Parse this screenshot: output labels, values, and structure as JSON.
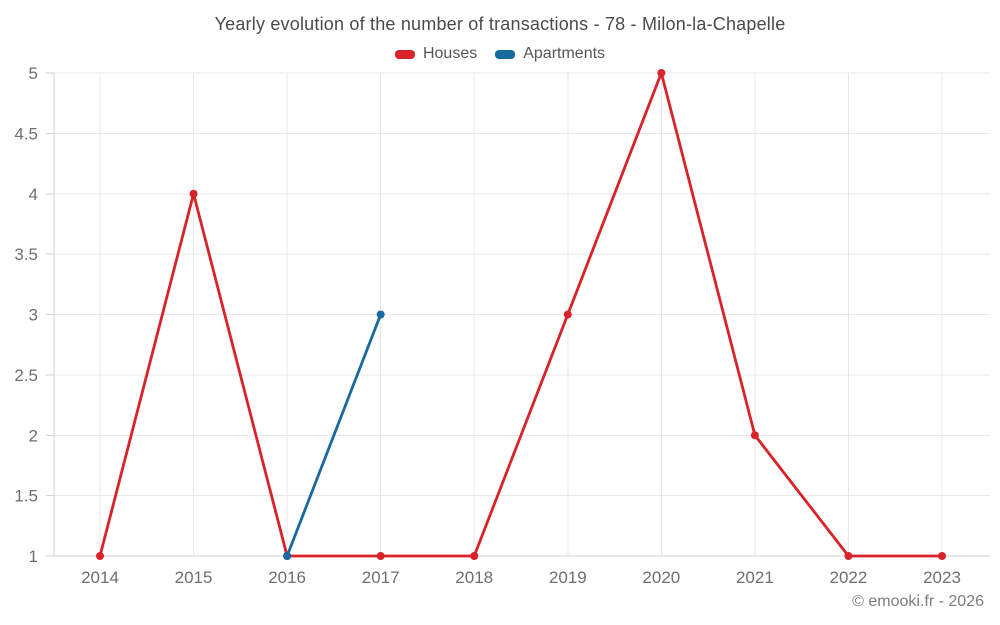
{
  "chart_data": {
    "type": "line",
    "title": "Yearly evolution of the number of transactions - 78 - Milon-la-Chapelle",
    "categories": [
      "2014",
      "2015",
      "2016",
      "2017",
      "2018",
      "2019",
      "2020",
      "2021",
      "2022",
      "2023"
    ],
    "series": [
      {
        "name": "Houses",
        "color": "#d8232a",
        "values": [
          1,
          4,
          1,
          1,
          1,
          3,
          5,
          2,
          1,
          1
        ]
      },
      {
        "name": "Apartments",
        "color": "#17699e",
        "values": [
          null,
          null,
          1,
          3,
          null,
          null,
          null,
          null,
          null,
          null
        ]
      }
    ],
    "xlabel": "",
    "ylabel": "",
    "ylim": [
      1,
      5
    ],
    "ytick_step": 0.5,
    "grid": true,
    "legend_position": "top"
  },
  "footer": {
    "credit": "© emooki.fr - 2026"
  }
}
